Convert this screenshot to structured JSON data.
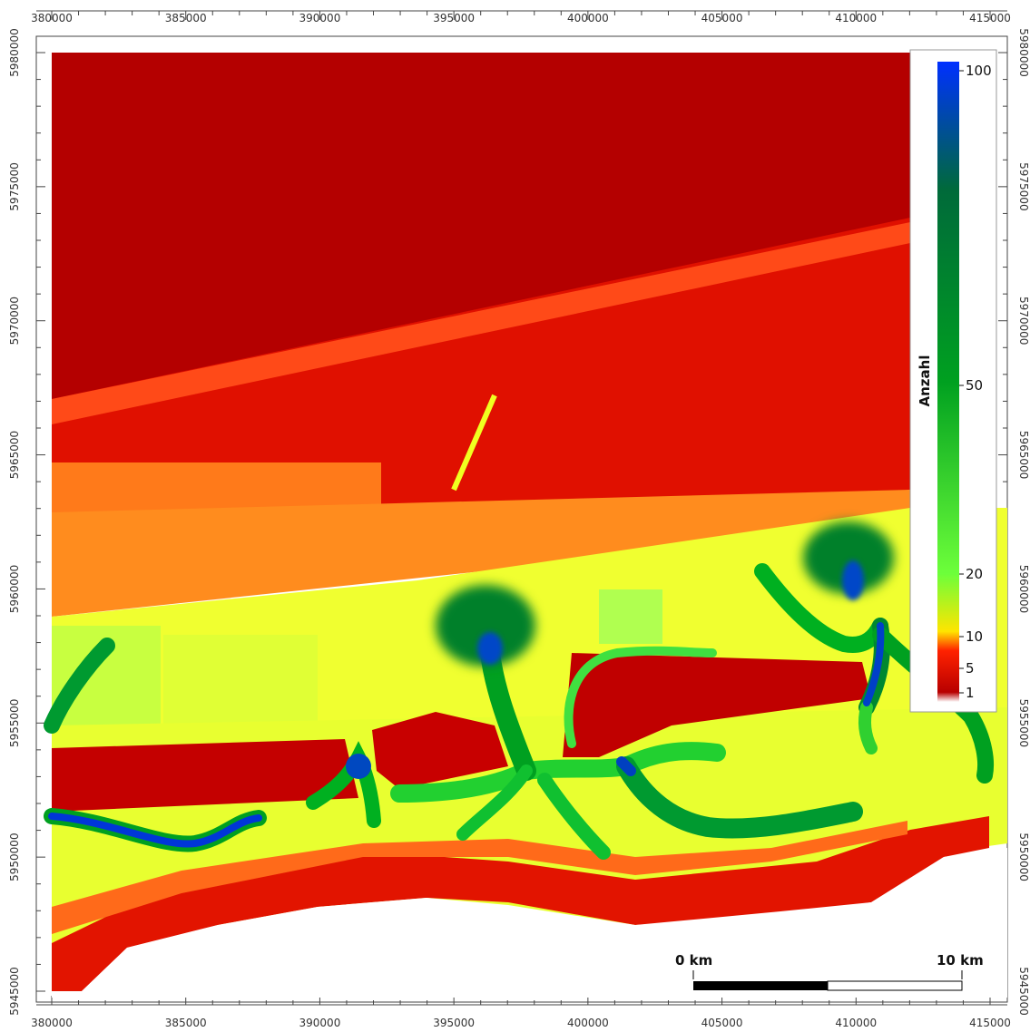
{
  "map": {
    "x_axis": {
      "range": [
        380000,
        415000
      ],
      "labels": [
        "380000",
        "385000",
        "390000",
        "395000",
        "400000",
        "405000",
        "410000",
        "415000"
      ]
    },
    "y_axis": {
      "range": [
        5945000,
        5980000
      ],
      "labels": [
        "5980000",
        "5975000",
        "5970000",
        "5965000",
        "5960000",
        "5955000",
        "5950000",
        "5945000"
      ]
    },
    "colors": {
      "background_land": "#ffffff",
      "dark_red": "#b80000",
      "red": "#e21000",
      "orange_red": "#ff4c10",
      "orange": "#ffa020",
      "yellow": "#f4ff2a",
      "light_green": "#7cff3c",
      "green": "#00b020",
      "dark_green": "#006a30",
      "blue": "#0034e0"
    }
  },
  "legend": {
    "title": "Anzahl",
    "labels": [
      "100",
      "50",
      "20",
      "10",
      "5",
      "1"
    ],
    "gradient": [
      "#ffffff",
      "#b80000",
      "#ff2200",
      "#ffe500",
      "#6dff3a",
      "#00a020",
      "#006a3a",
      "#0030ff"
    ]
  },
  "scale_bar": {
    "start_label": "0 km",
    "end_label": "10 km"
  }
}
